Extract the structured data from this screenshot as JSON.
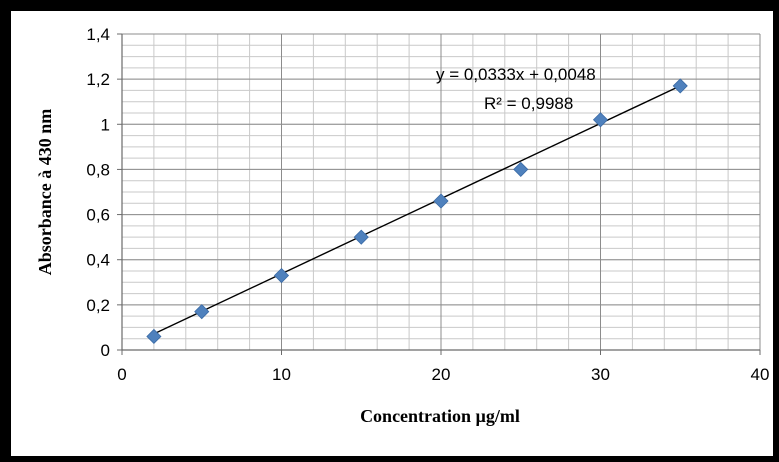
{
  "chart_data": {
    "type": "scatter",
    "xlabel": "Concentration µg/ml",
    "ylabel": "Absorbance à 430 nm",
    "xlim": [
      0,
      40
    ],
    "ylim": [
      0,
      1.4
    ],
    "x_ticks": [
      "0",
      "10",
      "20",
      "30",
      "40"
    ],
    "y_ticks": [
      "0",
      "0,2",
      "0,4",
      "0,6",
      "0,8",
      "1",
      "1,2",
      "1,4"
    ],
    "grid": true,
    "series": [
      {
        "color": "#4F81BD",
        "marker": "diamond",
        "x": [
          2,
          5,
          10,
          15,
          20,
          25,
          30,
          35
        ],
        "y": [
          0.06,
          0.17,
          0.33,
          0.5,
          0.66,
          0.8,
          1.02,
          1.17
        ]
      }
    ],
    "trendline": {
      "type": "linear",
      "slope": 0.0333,
      "intercept": 0.0048,
      "equation": "y = 0,0333x + 0,0048",
      "r_squared": "R² = 0,9988"
    }
  }
}
